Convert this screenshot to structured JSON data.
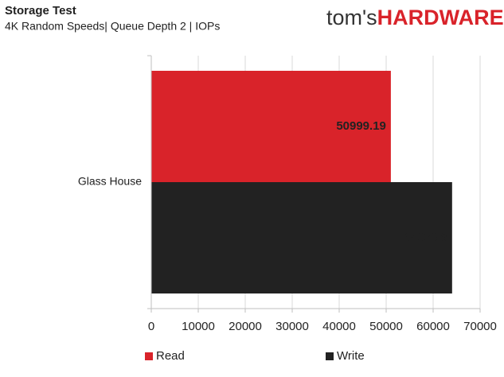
{
  "chart_data": {
    "type": "bar",
    "orientation": "horizontal",
    "title": "Storage Test",
    "subtitle": "4K Random Speeds| Queue Depth 2 | IOPs",
    "brand": [
      "tom's",
      "HARDWARE"
    ],
    "categories": [
      "Glass House"
    ],
    "series": [
      {
        "name": "Read",
        "color": "#d9232a",
        "values": [
          50999.19
        ]
      },
      {
        "name": "Write",
        "color": "#222222",
        "values": [
          64036.8
        ]
      }
    ],
    "xlim": [
      0,
      70000
    ],
    "xticks": [
      0,
      10000,
      20000,
      30000,
      40000,
      50000,
      60000,
      70000
    ],
    "grid": true,
    "legend": "bottom"
  }
}
